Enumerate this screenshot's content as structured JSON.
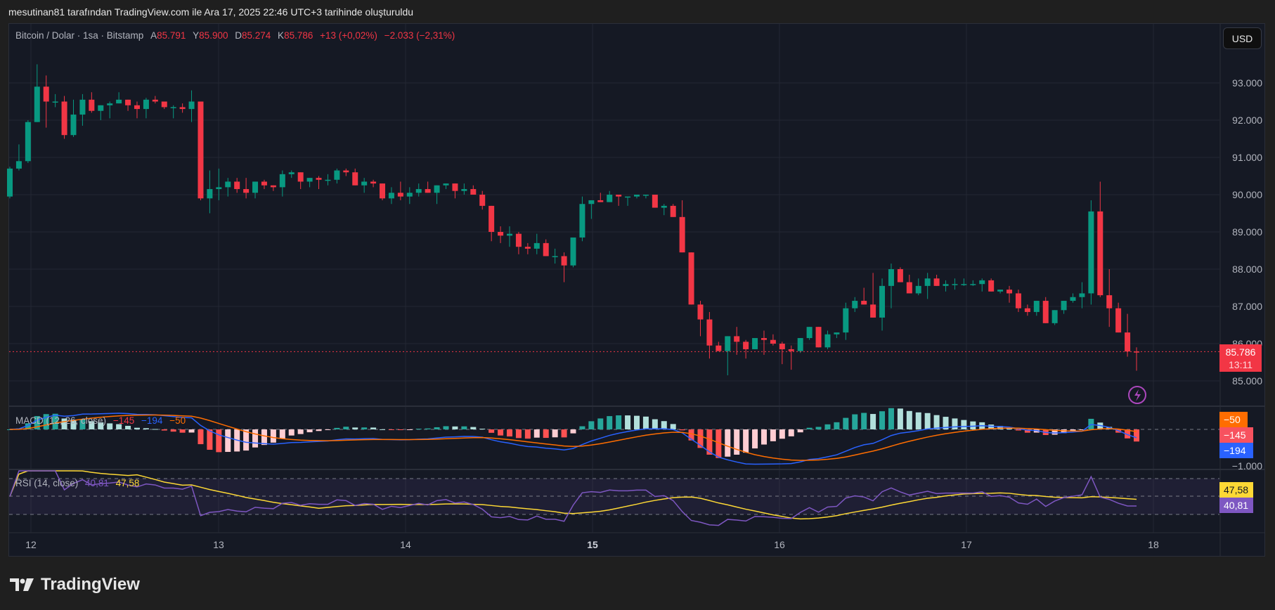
{
  "caption": "mesutinan81 tarafından TradingView.com ile Ara 17, 2025 22:46 UTC+3 tarihinde oluşturuldu",
  "symbol": {
    "title": "Bitcoin / Dolar · 1sa · Bitstamp",
    "open_label": "A",
    "open": "85.791",
    "high_label": "Y",
    "high": "85.900",
    "low_label": "D",
    "low": "85.274",
    "close_label": "K",
    "close": "85.786",
    "change": "+13 (+0,02%)",
    "change_24h": "−2.033 (−2,31%)"
  },
  "currency_button": "USD",
  "price_axis": {
    "ticks": [
      "93.000",
      "92.000",
      "91.000",
      "90.000",
      "89.000",
      "88.000",
      "87.000",
      "86.000",
      "85.000"
    ],
    "last_price": "85.786",
    "countdown": "13:11"
  },
  "time_axis": {
    "ticks": [
      "12",
      "13",
      "14",
      "15",
      "16",
      "17",
      "18"
    ],
    "bold_tick": "15"
  },
  "macd": {
    "label": "MACD (12, 26, close)",
    "histogram": "−145",
    "macd": "−194",
    "signal": "−50",
    "axis_tag_signal": "−50",
    "axis_tag_hist": "−145",
    "axis_tag_macd": "−194",
    "axis_tick": "−1.000"
  },
  "rsi": {
    "label": "RSI (14, close)",
    "rsi": "40,81",
    "rsi_ma": "47,58",
    "axis_tag_ma": "47,58",
    "axis_tag_rsi": "40,81"
  },
  "brand": "TradingView",
  "colors": {
    "up": "#089981",
    "down": "#f23645",
    "macd_line": "#2962ff",
    "signal_line": "#ff6d00",
    "rsi_line": "#7e57c2",
    "rsi_ma": "#fdd835",
    "background": "#151924"
  },
  "chart_data": {
    "type": "candlestick",
    "title": "Bitcoin / Dolar · 1sa · Bitstamp",
    "xlabel": "",
    "ylabel": "USD",
    "x_ticks": [
      "12",
      "13",
      "14",
      "15",
      "16",
      "17",
      "18"
    ],
    "ylim": [
      84700,
      93700
    ],
    "grid": true,
    "candles_ohlc": [
      [
        89950,
        90750,
        89900,
        90700
      ],
      [
        90700,
        91350,
        90650,
        90900
      ],
      [
        90900,
        92000,
        90850,
        91950
      ],
      [
        91950,
        93500,
        92750,
        92900
      ],
      [
        92900,
        93200,
        91800,
        92500
      ],
      [
        92500,
        92700,
        92350,
        92500
      ],
      [
        92500,
        92650,
        91500,
        91600
      ],
      [
        91600,
        92550,
        91550,
        92150
      ],
      [
        92150,
        92700,
        91850,
        92550
      ],
      [
        92550,
        92750,
        92200,
        92250
      ],
      [
        92250,
        92400,
        92000,
        92400
      ],
      [
        92400,
        92500,
        92050,
        92450
      ],
      [
        92450,
        92750,
        92450,
        92550
      ],
      [
        92550,
        92550,
        92250,
        92400
      ],
      [
        92400,
        92500,
        92050,
        92300
      ],
      [
        92300,
        92600,
        92050,
        92550
      ],
      [
        92550,
        92650,
        92450,
        92500
      ],
      [
        92500,
        92500,
        92300,
        92350
      ],
      [
        92350,
        92400,
        92050,
        92350
      ],
      [
        92350,
        92450,
        92200,
        92300
      ],
      [
        92300,
        92800,
        91950,
        92500
      ],
      [
        92500,
        92500,
        89850,
        89900
      ],
      [
        89900,
        90650,
        89500,
        90150
      ],
      [
        90150,
        90700,
        89850,
        90200
      ],
      [
        90200,
        90450,
        89950,
        90350
      ],
      [
        90350,
        90450,
        90050,
        90150
      ],
      [
        90150,
        90450,
        89900,
        90050
      ],
      [
        90050,
        90250,
        89900,
        90350
      ],
      [
        90350,
        90400,
        90150,
        90250
      ],
      [
        90250,
        90250,
        90100,
        90200
      ],
      [
        90200,
        90650,
        89950,
        90550
      ],
      [
        90550,
        90650,
        90450,
        90600
      ],
      [
        90600,
        90600,
        90150,
        90350
      ],
      [
        90350,
        90450,
        90200,
        90450
      ],
      [
        90450,
        90500,
        90150,
        90400
      ],
      [
        90400,
        90550,
        90250,
        90400
      ],
      [
        90400,
        90700,
        90300,
        90650
      ],
      [
        90650,
        90700,
        90500,
        90600
      ],
      [
        90600,
        90700,
        90300,
        90250
      ],
      [
        90250,
        90450,
        90050,
        90350
      ],
      [
        90350,
        90400,
        90200,
        90300
      ],
      [
        90300,
        90200,
        89850,
        89900
      ],
      [
        89900,
        90200,
        89750,
        90050
      ],
      [
        90050,
        90350,
        89850,
        89950
      ],
      [
        89950,
        90200,
        89750,
        90050
      ],
      [
        90050,
        90300,
        89950,
        90150
      ],
      [
        90150,
        90350,
        90050,
        90050
      ],
      [
        90050,
        90250,
        89750,
        90250
      ],
      [
        90250,
        90300,
        90150,
        90300
      ],
      [
        90300,
        90300,
        89900,
        90100
      ],
      [
        90100,
        90300,
        90000,
        90150
      ],
      [
        90150,
        90250,
        90000,
        90000
      ],
      [
        90000,
        90100,
        89600,
        89700
      ],
      [
        89700,
        89700,
        88750,
        89000
      ],
      [
        89000,
        89150,
        88700,
        88900
      ],
      [
        88900,
        89150,
        88600,
        88950
      ],
      [
        88950,
        89000,
        88400,
        88600
      ],
      [
        88600,
        88700,
        88400,
        88550
      ],
      [
        88550,
        88950,
        88400,
        88700
      ],
      [
        88700,
        88800,
        88400,
        88350
      ],
      [
        88350,
        88550,
        88150,
        88350
      ],
      [
        88350,
        88450,
        87650,
        88100
      ],
      [
        88100,
        88600,
        88050,
        88850
      ],
      [
        88850,
        89950,
        88750,
        89750
      ],
      [
        89750,
        89800,
        89350,
        89850
      ],
      [
        89850,
        90050,
        89800,
        89800
      ],
      [
        89800,
        90100,
        89950,
        90000
      ],
      [
        90000,
        89950,
        89700,
        89950
      ],
      [
        89950,
        89950,
        89700,
        89950
      ],
      [
        89950,
        89950,
        89900,
        90000
      ],
      [
        90000,
        90000,
        89900,
        90000
      ],
      [
        90000,
        90000,
        89650,
        89650
      ],
      [
        89650,
        89750,
        89450,
        89700
      ],
      [
        89700,
        89750,
        89500,
        89400
      ],
      [
        89400,
        89850,
        88650,
        88450
      ],
      [
        88450,
        88350,
        88500,
        87050
      ],
      [
        87050,
        87150,
        86200,
        86650
      ],
      [
        86650,
        86850,
        85600,
        85950
      ],
      [
        85950,
        86050,
        85800,
        85800
      ],
      [
        85800,
        86100,
        85150,
        86200
      ],
      [
        86200,
        86450,
        85700,
        86050
      ],
      [
        86050,
        86100,
        85600,
        85850
      ],
      [
        85850,
        86150,
        85850,
        86150
      ],
      [
        86150,
        86350,
        85700,
        86100
      ],
      [
        86100,
        86250,
        85950,
        86000
      ],
      [
        86000,
        86050,
        85450,
        85850
      ],
      [
        85850,
        85950,
        85300,
        85800
      ],
      [
        85800,
        86150,
        85750,
        86150
      ],
      [
        86150,
        86450,
        86100,
        86450
      ],
      [
        86450,
        86450,
        85900,
        85900
      ],
      [
        85900,
        86350,
        85850,
        86250
      ],
      [
        86250,
        86300,
        86150,
        86300
      ],
      [
        86300,
        87100,
        86100,
        86950
      ],
      [
        86950,
        87250,
        86850,
        87150
      ],
      [
        87150,
        87500,
        87100,
        87050
      ],
      [
        87050,
        87900,
        86750,
        86700
      ],
      [
        86700,
        87750,
        86350,
        87550
      ],
      [
        87550,
        88150,
        86950,
        88000
      ],
      [
        88000,
        88050,
        87650,
        87650
      ],
      [
        87650,
        87850,
        87350,
        87350
      ],
      [
        87350,
        87750,
        87300,
        87550
      ],
      [
        87550,
        87900,
        87200,
        87750
      ],
      [
        87750,
        87850,
        87550,
        87550
      ],
      [
        87550,
        87700,
        87400,
        87600
      ],
      [
        87600,
        87750,
        87450,
        87600
      ],
      [
        87600,
        87750,
        87550,
        87600
      ],
      [
        87600,
        87700,
        87550,
        87600
      ],
      [
        87600,
        87750,
        87400,
        87700
      ],
      [
        87700,
        87750,
        87450,
        87400
      ],
      [
        87400,
        87400,
        87350,
        87450
      ],
      [
        87450,
        87550,
        87100,
        87350
      ],
      [
        87350,
        87450,
        86850,
        86950
      ],
      [
        86950,
        87050,
        86750,
        86850
      ],
      [
        86850,
        87150,
        86750,
        87150
      ],
      [
        87150,
        87250,
        86700,
        86550
      ],
      [
        86550,
        86600,
        86500,
        86900
      ],
      [
        86900,
        87150,
        86800,
        87150
      ],
      [
        87150,
        87350,
        87100,
        87250
      ],
      [
        87250,
        87650,
        86950,
        87350
      ],
      [
        87350,
        89850,
        87050,
        89550
      ],
      [
        89550,
        90350,
        87250,
        87300
      ],
      [
        87300,
        88000,
        86450,
        86950
      ],
      [
        86950,
        87100,
        86400,
        86300
      ],
      [
        86300,
        86800,
        85650,
        85790
      ],
      [
        85790,
        85900,
        85274,
        85786
      ]
    ]
  }
}
